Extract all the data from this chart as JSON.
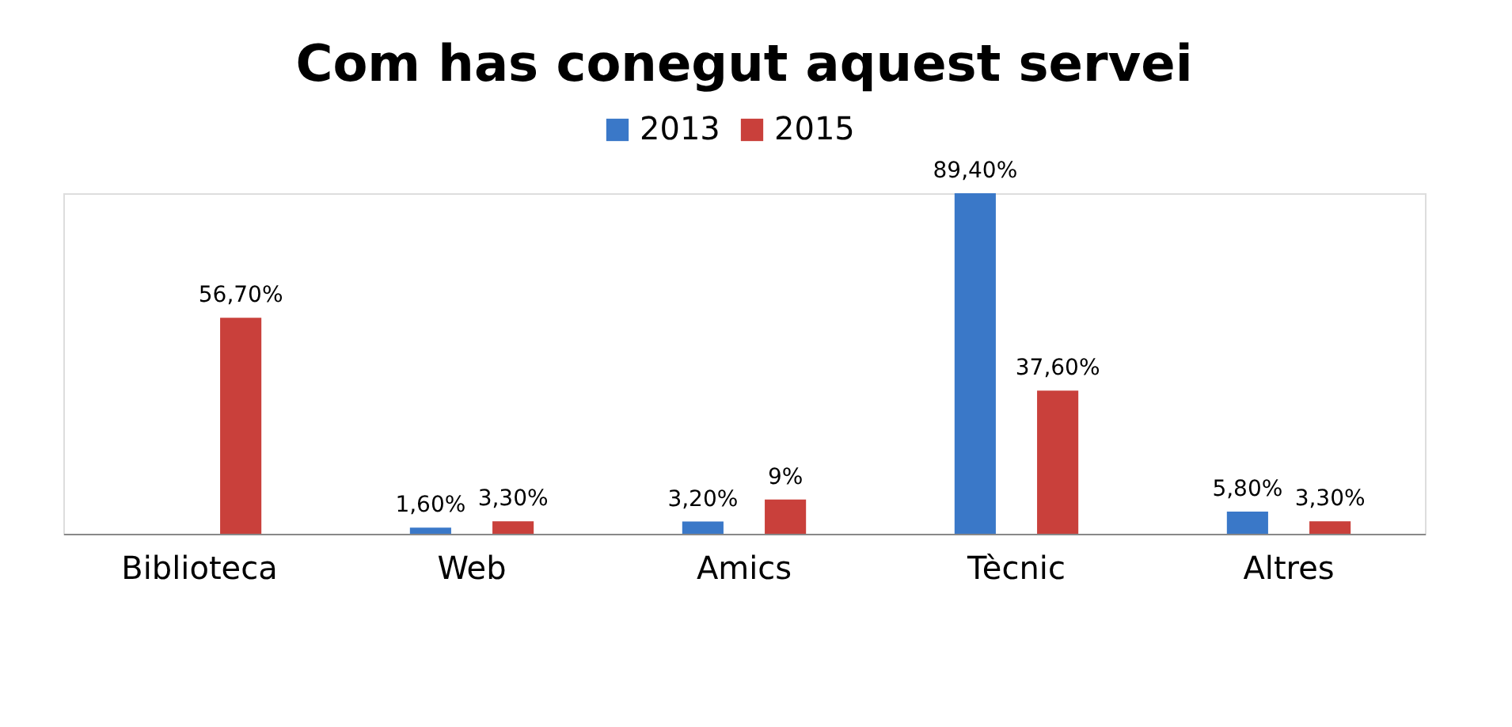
{
  "chart_data": {
    "type": "bar",
    "title": "Com has conegut aquest servei",
    "categories": [
      "Biblioteca",
      "Web",
      "Amics",
      "Tècnic",
      "Altres"
    ],
    "legend": "top",
    "grid": false,
    "series": [
      {
        "name": "2013",
        "color": "#3a78c8",
        "values": [
          null,
          1.6,
          3.2,
          89.4,
          5.8
        ],
        "value_labels": [
          null,
          "1,60%",
          "3,20%",
          "89,40%",
          "5,80%"
        ]
      },
      {
        "name": "2015",
        "color": "#c9403b",
        "values": [
          56.7,
          3.3,
          9,
          37.6,
          3.3
        ],
        "value_labels": [
          "56,70%",
          "3,30%",
          "9%",
          "37,60%",
          "3,30%"
        ]
      }
    ]
  }
}
